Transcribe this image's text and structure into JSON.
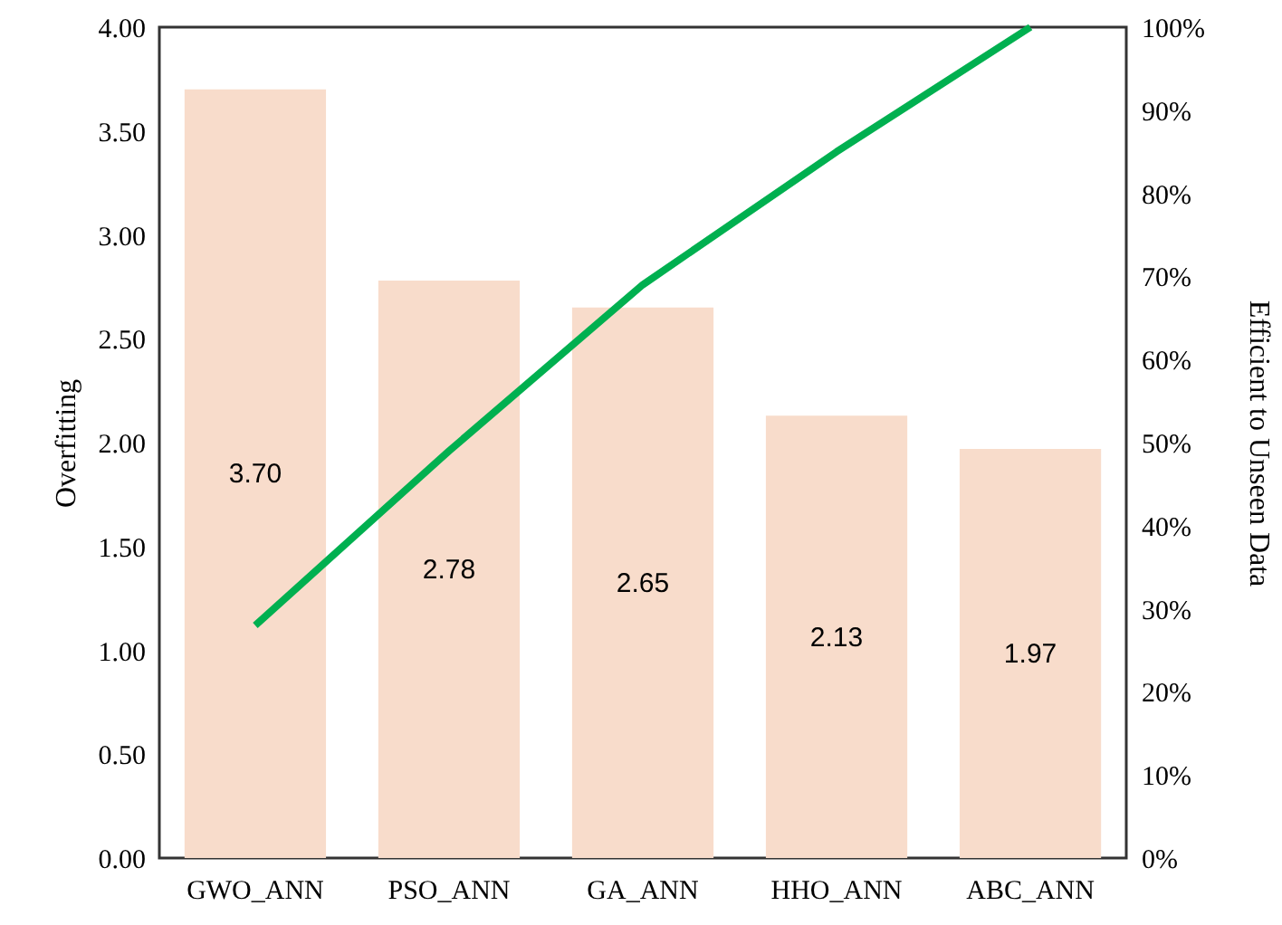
{
  "chart_data": {
    "type": "bar",
    "ylabel": "Overfitting",
    "y2label": "Efficient to Unseen Data",
    "categories": [
      "GWO_ANN",
      "PSO_ANN",
      "GA_ANN",
      "HHO_ANN",
      "ABC_ANN"
    ],
    "series": [
      {
        "color": "#f8dccb",
        "values": [
          3.7,
          2.78,
          2.65,
          2.13,
          1.97
        ],
        "value_labels": [
          "3.70",
          "2.78",
          "2.65",
          "2.13",
          "1.97"
        ]
      },
      {
        "type": "line",
        "axis": "y2",
        "color": "#00b050",
        "values": [
          28,
          49,
          69,
          85,
          100
        ]
      }
    ],
    "ylim": [
      0,
      4
    ],
    "yticks": [
      {
        "value": 0,
        "label": "0.00"
      },
      {
        "value": 0.5,
        "label": "0.50"
      },
      {
        "value": 1,
        "label": "1.00"
      },
      {
        "value": 1.5,
        "label": "1.50"
      },
      {
        "value": 2,
        "label": "2.00"
      },
      {
        "value": 2.5,
        "label": "2.50"
      },
      {
        "value": 3,
        "label": "3.00"
      },
      {
        "value": 3.5,
        "label": "3.50"
      },
      {
        "value": 4,
        "label": "4.00"
      }
    ],
    "y2lim": [
      0,
      100
    ],
    "y2ticks": [
      {
        "value": 0,
        "label": "0%"
      },
      {
        "value": 10,
        "label": "10%"
      },
      {
        "value": 20,
        "label": "20%"
      },
      {
        "value": 30,
        "label": "30%"
      },
      {
        "value": 40,
        "label": "40%"
      },
      {
        "value": 50,
        "label": "50%"
      },
      {
        "value": 60,
        "label": "60%"
      },
      {
        "value": 70,
        "label": "70%"
      },
      {
        "value": 80,
        "label": "80%"
      },
      {
        "value": 90,
        "label": "90%"
      },
      {
        "value": 100,
        "label": "100%"
      }
    ]
  }
}
